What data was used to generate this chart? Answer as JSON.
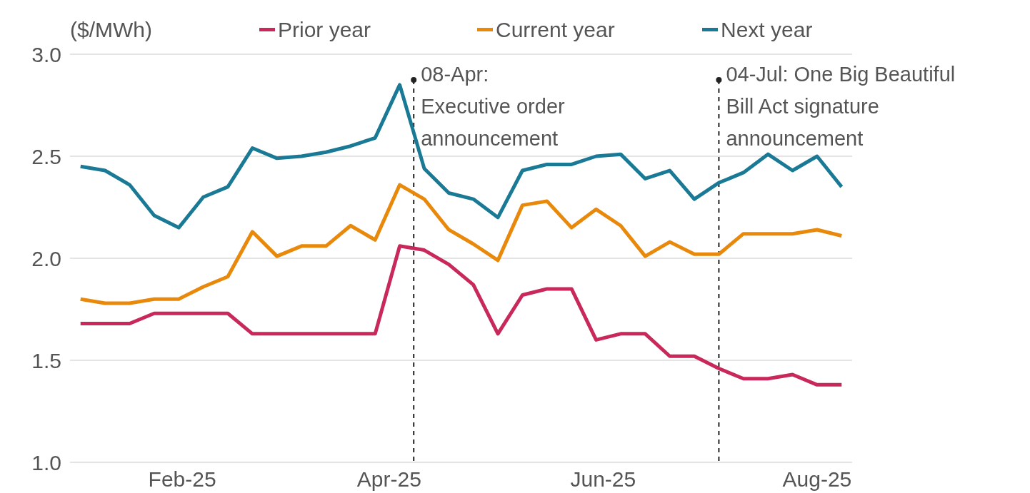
{
  "chart_data": {
    "type": "line",
    "ylabel": "($/MWh)",
    "x": [
      "2025-01-03",
      "2025-01-10",
      "2025-01-17",
      "2025-01-24",
      "2025-01-31",
      "2025-02-07",
      "2025-02-14",
      "2025-02-21",
      "2025-02-28",
      "2025-03-07",
      "2025-03-14",
      "2025-03-21",
      "2025-03-28",
      "2025-04-04",
      "2025-04-11",
      "2025-04-18",
      "2025-04-25",
      "2025-05-02",
      "2025-05-09",
      "2025-05-16",
      "2025-05-23",
      "2025-05-30",
      "2025-06-06",
      "2025-06-13",
      "2025-06-20",
      "2025-06-27",
      "2025-07-04",
      "2025-07-11",
      "2025-07-18",
      "2025-07-25",
      "2025-08-01",
      "2025-08-08"
    ],
    "series": [
      {
        "name": "Prior year",
        "color": "#c8285a",
        "values": [
          1.68,
          1.68,
          1.68,
          1.73,
          1.73,
          1.73,
          1.73,
          1.63,
          1.63,
          1.63,
          1.63,
          1.63,
          1.63,
          2.06,
          2.04,
          1.97,
          1.87,
          1.63,
          1.82,
          1.85,
          1.85,
          1.6,
          1.63,
          1.63,
          1.52,
          1.52,
          1.46,
          1.41,
          1.41,
          1.43,
          1.38,
          1.38
        ]
      },
      {
        "name": "Current year",
        "color": "#e8890c",
        "values": [
          1.8,
          1.78,
          1.78,
          1.8,
          1.8,
          1.86,
          1.91,
          2.13,
          2.01,
          2.06,
          2.06,
          2.16,
          2.09,
          2.36,
          2.29,
          2.14,
          2.07,
          1.99,
          2.26,
          2.28,
          2.15,
          2.24,
          2.16,
          2.01,
          2.08,
          2.02,
          2.02,
          2.12,
          2.12,
          2.12,
          2.14,
          2.11
        ]
      },
      {
        "name": "Next year",
        "color": "#1a7a96",
        "values": [
          2.45,
          2.43,
          2.36,
          2.21,
          2.15,
          2.3,
          2.35,
          2.54,
          2.49,
          2.5,
          2.52,
          2.55,
          2.59,
          2.85,
          2.44,
          2.32,
          2.29,
          2.2,
          2.43,
          2.46,
          2.46,
          2.5,
          2.51,
          2.39,
          2.43,
          2.29,
          2.37,
          2.42,
          2.51,
          2.43,
          2.5,
          2.35
        ]
      }
    ],
    "xlim": [
      "2024-12-31",
      "2025-08-11"
    ],
    "xticks": [
      {
        "value": "2025-02-01",
        "label": "Feb-25"
      },
      {
        "value": "2025-04-01",
        "label": "Apr-25"
      },
      {
        "value": "2025-06-01",
        "label": "Jun-25"
      },
      {
        "value": "2025-08-01",
        "label": "Aug-25"
      }
    ],
    "ylim": [
      1.0,
      3.0
    ],
    "yticks": [
      {
        "value": 1.0,
        "label": "1.0"
      },
      {
        "value": 1.5,
        "label": "1.5"
      },
      {
        "value": 2.0,
        "label": "2.0"
      },
      {
        "value": 2.5,
        "label": "2.5"
      },
      {
        "value": 3.0,
        "label": "3.0"
      }
    ],
    "ref_lines": [
      {
        "axis": "x",
        "value": "2025-04-08",
        "label": "08-Apr:\nExecutive order\nannouncement",
        "line_style": "dashed",
        "color": "#222222"
      },
      {
        "axis": "x",
        "value": "2025-07-04",
        "label": "04-Jul: One Big Beautiful\nBill Act signature\nannouncement",
        "line_style": "dashed",
        "color": "#222222"
      }
    ],
    "grid": "y",
    "legend": "top",
    "marker": "none",
    "line_style": "solid"
  }
}
